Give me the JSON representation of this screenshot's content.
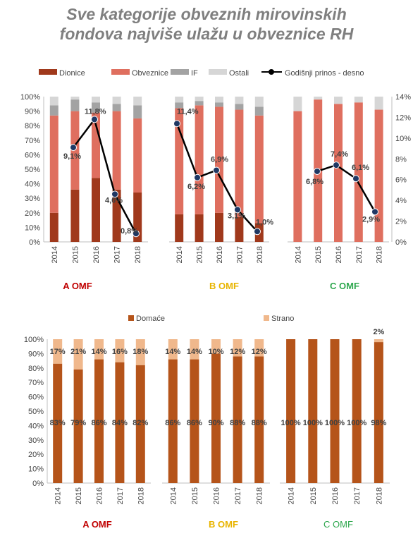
{
  "title": {
    "line1": "Sve kategorije obveznih mirovinskih",
    "line2": "fondova najviše ulažu u obveznice RH"
  },
  "colors": {
    "dionice": "#a0391c",
    "obveznice": "#df6f5f",
    "if": "#a3a3a3",
    "ostali": "#d6d6d6",
    "prinos": "#000000",
    "marker": "#1f3864",
    "domace": "#b5541a",
    "strano": "#f0b88c",
    "label_a": "#c00000",
    "label_b": "#e8b400",
    "label_c": "#2fa84f"
  },
  "chart_data": [
    {
      "type": "bar",
      "stacked": true,
      "group": "A OMF",
      "categories": [
        "2014",
        "2015",
        "2016",
        "2017",
        "2018"
      ],
      "series": [
        {
          "name": "Dionice",
          "values": [
            20,
            36,
            44,
            36,
            34
          ]
        },
        {
          "name": "Obveznice",
          "values": [
            67,
            54,
            45,
            54,
            51
          ]
        },
        {
          "name": "IF",
          "values": [
            7,
            8,
            7,
            5,
            9
          ]
        },
        {
          "name": "Ostali",
          "values": [
            6,
            2,
            4,
            5,
            6
          ]
        }
      ],
      "line": {
        "name": "Godišnji prinos - desno",
        "values": [
          null,
          9.1,
          11.8,
          4.6,
          0.8
        ],
        "labels": [
          "",
          "9,1%",
          "11,8%",
          "4,6%",
          "0,8%"
        ]
      },
      "ylim": [
        0,
        100
      ],
      "yticks": [
        "0%",
        "10%",
        "20%",
        "30%",
        "40%",
        "50%",
        "60%",
        "70%",
        "80%",
        "90%",
        "100%"
      ],
      "y2lim": [
        0,
        14
      ],
      "label": "A OMF"
    },
    {
      "type": "bar",
      "stacked": true,
      "group": "B OMF",
      "categories": [
        "2014",
        "2015",
        "2016",
        "2017",
        "2018"
      ],
      "series": [
        {
          "name": "Dionice",
          "values": [
            19,
            19,
            20,
            17,
            13
          ]
        },
        {
          "name": "Obveznice",
          "values": [
            73,
            75,
            73,
            74,
            74
          ]
        },
        {
          "name": "IF",
          "values": [
            4,
            3,
            3,
            4,
            6
          ]
        },
        {
          "name": "Ostali",
          "values": [
            4,
            3,
            4,
            5,
            7
          ]
        }
      ],
      "line": {
        "name": "Godišnji prinos - desno",
        "values": [
          11.4,
          6.2,
          6.9,
          3.1,
          1.0
        ],
        "labels": [
          "11,4%",
          "6,2%",
          "6,9%",
          "3,1%",
          "1,0%"
        ]
      },
      "ylim": [
        0,
        100
      ],
      "y2lim": [
        0,
        14
      ],
      "label": "B OMF"
    },
    {
      "type": "bar",
      "stacked": true,
      "group": "C OMF",
      "categories": [
        "2014",
        "2015",
        "2016",
        "2017",
        "2018"
      ],
      "series": [
        {
          "name": "Dionice",
          "values": [
            0,
            0,
            0,
            0,
            0
          ]
        },
        {
          "name": "Obveznice",
          "values": [
            90,
            98,
            95,
            96,
            91
          ]
        },
        {
          "name": "IF",
          "values": [
            0,
            0,
            0,
            0,
            0
          ]
        },
        {
          "name": "Ostali",
          "values": [
            10,
            2,
            5,
            4,
            9
          ]
        }
      ],
      "line": {
        "name": "Godišnji prinos - desno",
        "values": [
          null,
          6.8,
          7.4,
          6.1,
          2.9
        ],
        "labels": [
          "",
          "6,8%",
          "7,4%",
          "6,1%",
          "2,9%"
        ]
      },
      "ylim": [
        0,
        100
      ],
      "y2lim": [
        0,
        14
      ],
      "y2ticks": [
        "0%",
        "2%",
        "4%",
        "6%",
        "8%",
        "10%",
        "12%",
        "14%"
      ],
      "label": "C OMF"
    },
    {
      "type": "bar",
      "stacked": true,
      "group": "A OMF",
      "categories": [
        "2014",
        "2015",
        "2016",
        "2017",
        "2018"
      ],
      "series": [
        {
          "name": "Domaće",
          "values": [
            83,
            79,
            86,
            84,
            82
          ],
          "labels": [
            "83%",
            "79%",
            "86%",
            "84%",
            "82%"
          ]
        },
        {
          "name": "Strano",
          "values": [
            17,
            21,
            14,
            16,
            18
          ],
          "labels": [
            "17%",
            "21%",
            "14%",
            "16%",
            "18%"
          ]
        }
      ],
      "ylim": [
        0,
        100
      ],
      "yticks": [
        "0%",
        "10%",
        "20%",
        "30%",
        "40%",
        "50%",
        "60%",
        "70%",
        "80%",
        "90%",
        "100%"
      ],
      "label": "A OMF"
    },
    {
      "type": "bar",
      "stacked": true,
      "group": "B OMF",
      "categories": [
        "2014",
        "2015",
        "2016",
        "2017",
        "2018"
      ],
      "series": [
        {
          "name": "Domaće",
          "values": [
            86,
            86,
            90,
            88,
            88
          ],
          "labels": [
            "86%",
            "86%",
            "90%",
            "88%",
            "88%"
          ]
        },
        {
          "name": "Strano",
          "values": [
            14,
            14,
            10,
            12,
            12
          ],
          "labels": [
            "14%",
            "14%",
            "10%",
            "12%",
            "12%"
          ]
        }
      ],
      "ylim": [
        0,
        100
      ],
      "label": "B OMF"
    },
    {
      "type": "bar",
      "stacked": true,
      "group": "C OMF",
      "categories": [
        "2014",
        "2015",
        "2016",
        "2017",
        "2018"
      ],
      "series": [
        {
          "name": "Domaće",
          "values": [
            100,
            100,
            100,
            100,
            98
          ],
          "labels": [
            "100%",
            "100%",
            "100%",
            "100%",
            "98%"
          ]
        },
        {
          "name": "Strano",
          "values": [
            0,
            0,
            0,
            0,
            2
          ],
          "labels": [
            "",
            "",
            "",
            "",
            "2%"
          ]
        }
      ],
      "ylim": [
        0,
        100
      ],
      "label": "C OMF"
    }
  ],
  "legend_top": [
    "Dionice",
    "Obveznice",
    "IF",
    "Ostali",
    "Godišnji prinos - desno"
  ],
  "legend_bottom": [
    "Domaće",
    "Strano"
  ]
}
